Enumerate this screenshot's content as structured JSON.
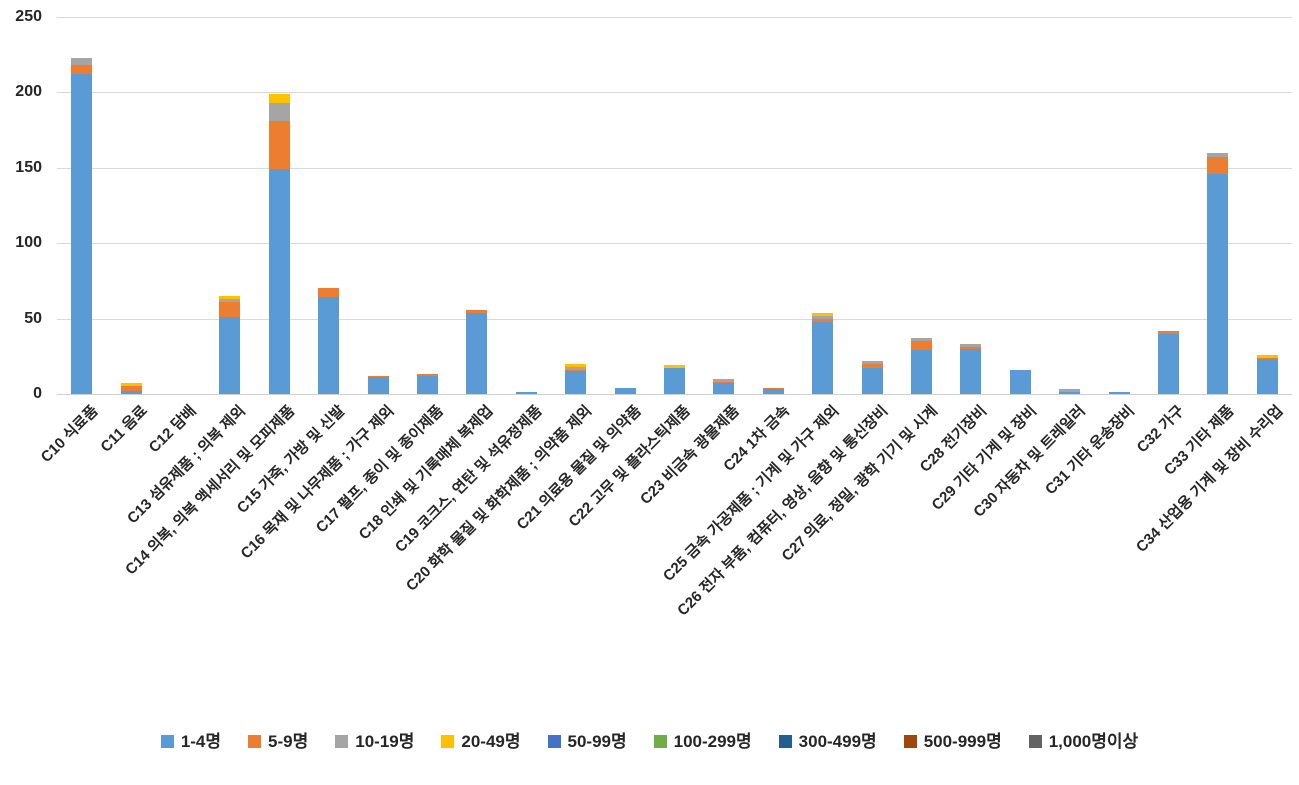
{
  "chart_data": {
    "type": "bar",
    "stacked": true,
    "title": "",
    "xlabel": "",
    "ylabel": "",
    "ylim": [
      0,
      250
    ],
    "yticks": [
      0,
      50,
      100,
      150,
      200,
      250
    ],
    "grid": true,
    "legend_position": "bottom",
    "categories": [
      "C10 식료품",
      "C11 음료",
      "C12 담배",
      "C13 섬유제품 ; 의복 제외",
      "C14 의복, 의복 액세서리 및 모피제품",
      "C15 가죽, 가방 및 신발",
      "C16 목재 및 나무제품 ; 가구 제외",
      "C17 펄프, 종이 및 종이제품",
      "C18 인쇄 및 기록매체 복제업",
      "C19 코크스, 연탄 및 석유정제품",
      "C20 화학 물질 및 화학제품 ; 의약품 제외",
      "C21 의료용 물질 및 의약품",
      "C22 고무 및 플라스틱제품",
      "C23 비금속 광물제품",
      "C24 1차 금속",
      "C25 금속 가공제품 ; 기계 및 가구 제외",
      "C26 전자 부품, 컴퓨터, 영상, 음향 및 통신장비",
      "C27 의료, 정밀, 광학 기기 및 시계",
      "C28 전기장비",
      "C29 기타 기계 및 장비",
      "C30 자동차 및 트레일러",
      "C31 기타 운송장비",
      "C32 가구",
      "C33 기타 제품",
      "C34 산업용 기계 및 장비 수리업"
    ],
    "series": [
      {
        "name": "1-4명",
        "color": "#5B9BD5",
        "values": [
          212,
          2,
          0,
          51,
          149,
          64,
          11,
          12,
          54,
          1,
          15,
          4,
          17,
          7,
          3,
          48,
          17,
          29,
          30,
          16,
          1,
          1,
          40,
          146,
          23
        ]
      },
      {
        "name": "5-9명",
        "color": "#ED7D31",
        "values": [
          6,
          3,
          0,
          10,
          32,
          6,
          1,
          1,
          2,
          0,
          1,
          0,
          0,
          1,
          1,
          2,
          3,
          6,
          1,
          0,
          0,
          0,
          2,
          11,
          1
        ]
      },
      {
        "name": "10-19명",
        "color": "#A5A5A5",
        "values": [
          5,
          0,
          0,
          2,
          12,
          0,
          0,
          0,
          0,
          0,
          2,
          0,
          0,
          2,
          0,
          2,
          2,
          2,
          2,
          0,
          2,
          0,
          0,
          3,
          0
        ]
      },
      {
        "name": "20-49명",
        "color": "#FFC000",
        "values": [
          0,
          2,
          0,
          2,
          6,
          0,
          0,
          0,
          0,
          0,
          2,
          0,
          2,
          0,
          0,
          2,
          0,
          0,
          0,
          0,
          0,
          0,
          0,
          0,
          2
        ]
      },
      {
        "name": "50-99명",
        "color": "#4472C4",
        "values": [
          0,
          0,
          0,
          0,
          0,
          0,
          0,
          0,
          0,
          0,
          0,
          0,
          0,
          0,
          0,
          0,
          0,
          0,
          0,
          0,
          0,
          0,
          0,
          0,
          0
        ]
      },
      {
        "name": "100-299명",
        "color": "#70AD47",
        "values": [
          0,
          0,
          0,
          0,
          0,
          0,
          0,
          0,
          0,
          0,
          0,
          0,
          0,
          0,
          0,
          0,
          0,
          0,
          0,
          0,
          0,
          0,
          0,
          0,
          0
        ]
      },
      {
        "name": "300-499명",
        "color": "#255E91",
        "values": [
          0,
          0,
          0,
          0,
          0,
          0,
          0,
          0,
          0,
          0,
          0,
          0,
          0,
          0,
          0,
          0,
          0,
          0,
          0,
          0,
          0,
          0,
          0,
          0,
          0
        ]
      },
      {
        "name": "500-999명",
        "color": "#9E480E",
        "values": [
          0,
          0,
          0,
          0,
          0,
          0,
          0,
          0,
          0,
          0,
          0,
          0,
          0,
          0,
          0,
          0,
          0,
          0,
          0,
          0,
          0,
          0,
          0,
          0,
          0
        ]
      },
      {
        "name": "1,000명이상",
        "color": "#636363",
        "values": [
          0,
          0,
          0,
          0,
          0,
          0,
          0,
          0,
          0,
          0,
          0,
          0,
          0,
          0,
          0,
          0,
          0,
          0,
          0,
          0,
          0,
          0,
          0,
          0,
          0
        ]
      }
    ]
  },
  "colors": {
    "background": "#FFFFFF",
    "gridline": "#D9D9D9",
    "axis_text": "#262626"
  }
}
